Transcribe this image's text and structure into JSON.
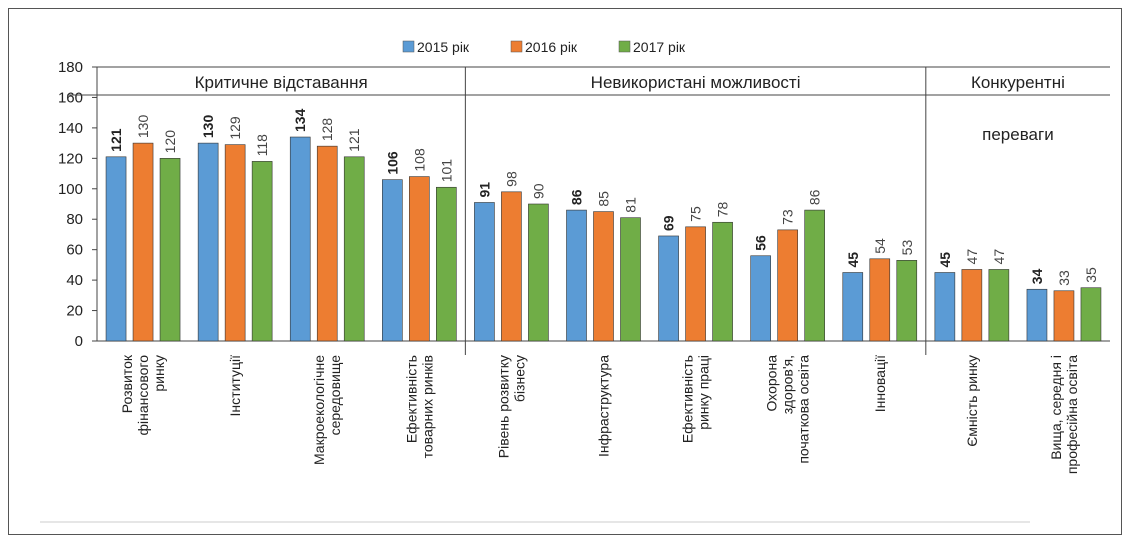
{
  "chart_data": {
    "type": "bar",
    "categories": [
      "Розвиток\nфінансового\nринку",
      "Інституції",
      "Макроекологічне\nсередовище",
      "Ефективність\nтоварних ринків",
      "Рівень розвитку\nбізнесу",
      "Інфраструктура",
      "Ефективність\nринку праці",
      "Охорона\nздоров'я,\nпочаткова освіта",
      "Інновації",
      "Ємність ринку",
      "Вища, середня і\nпрофесійна освіта"
    ],
    "series": [
      {
        "name": "2015 рік",
        "color": "#5b9bd5",
        "values": [
          121,
          130,
          134,
          106,
          91,
          86,
          69,
          56,
          45,
          45,
          34
        ]
      },
      {
        "name": "2016 рік",
        "color": "#ed7d31",
        "values": [
          130,
          129,
          128,
          108,
          98,
          85,
          75,
          73,
          54,
          47,
          33
        ]
      },
      {
        "name": "2017 рік",
        "color": "#70ad47",
        "values": [
          120,
          118,
          121,
          101,
          90,
          81,
          78,
          86,
          53,
          47,
          35
        ]
      }
    ],
    "sections": [
      {
        "label": "Критичне відставання",
        "first": 0
      },
      {
        "label": "Невикористані можливості",
        "first": 4
      },
      {
        "label": "Конкурентні\nпереваги",
        "first": 9
      }
    ],
    "ylim": [
      0,
      180
    ],
    "yticks": [
      0,
      20,
      40,
      60,
      80,
      100,
      120,
      140,
      160,
      180
    ],
    "grid": false,
    "legend": "top"
  }
}
